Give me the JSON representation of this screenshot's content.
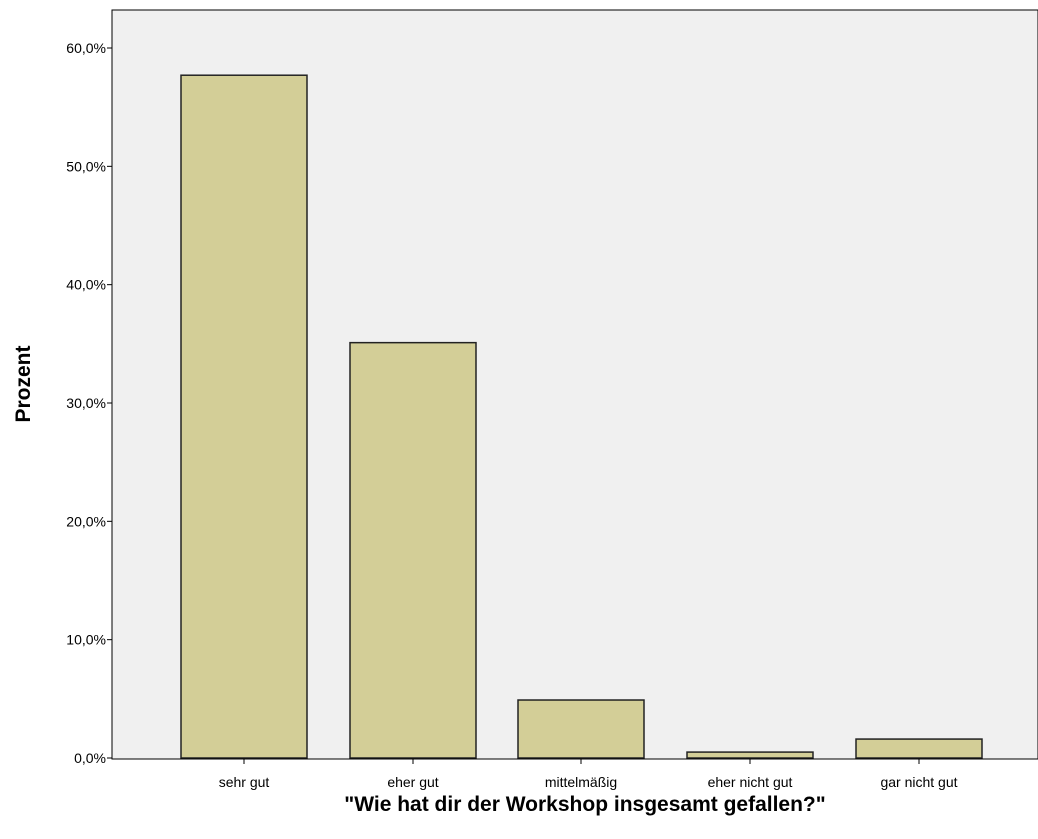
{
  "chart_data": {
    "type": "bar",
    "categories": [
      "sehr gut",
      "eher gut",
      "mittelmäßig",
      "eher nicht gut",
      "gar nicht gut"
    ],
    "values": [
      57.7,
      35.1,
      4.9,
      0.5,
      1.6
    ],
    "xlabel": "\"Wie hat dir der Workshop insgesamt gefallen?\"",
    "ylabel": "Prozent",
    "ylim": [
      0,
      60
    ],
    "yticks": [
      0,
      10,
      20,
      30,
      40,
      50,
      60
    ],
    "ytick_labels": [
      "0,0%",
      "10,0%",
      "20,0%",
      "30,0%",
      "40,0%",
      "50,0%",
      "60,0%"
    ],
    "grid": false,
    "bar_color": "#d3ce97",
    "bar_edge_color": "#222222",
    "plot_background": "#f0f0f0"
  }
}
